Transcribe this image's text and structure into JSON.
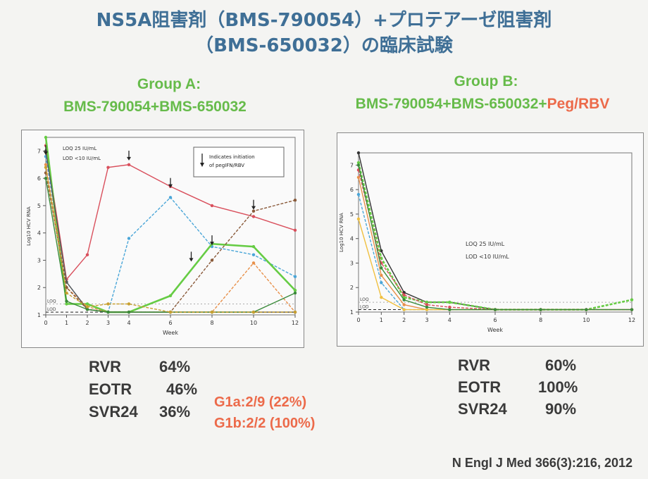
{
  "slide": {
    "title_line1": "NS5A阻害剤（BMS-790054）+プロテアーゼ阻害剤",
    "title_line2": "（BMS-650032）の臨床試験",
    "citation": "N Engl J Med 366(3):216, 2012"
  },
  "groupA": {
    "header1": "Group A:",
    "header2": "BMS-790054+BMS-650032",
    "stats": [
      {
        "label": "RVR",
        "value": "64%"
      },
      {
        "label": "EOTR",
        "value": "46%"
      },
      {
        "label": "SVR24",
        "value": "36%"
      }
    ],
    "genotype": [
      "G1a:2/9 (22%)",
      "G1b:2/2 (100%)"
    ]
  },
  "groupB": {
    "header1": "Group B:",
    "header2_prefix": "BMS-790054+BMS-650032+",
    "header2_peg": "Peg/RBV",
    "stats": [
      {
        "label": "RVR",
        "value": "60%"
      },
      {
        "label": "EOTR",
        "value": "100%"
      },
      {
        "label": "SVR24",
        "value": "90%"
      }
    ]
  },
  "chart_data": [
    {
      "type": "line",
      "xlabel": "Week",
      "ylabel": "Log10 HCV RNA",
      "xlim": [
        0,
        12
      ],
      "ylim": [
        1,
        7.5
      ],
      "xticks": [
        0,
        1,
        2,
        3,
        4,
        6,
        8,
        10,
        12
      ],
      "yticks": [
        1,
        2,
        3,
        4,
        5,
        6,
        7
      ],
      "lod_label": "LOD",
      "loq_label": "LOQ",
      "annotation_left": [
        "LOQ 25 IU/mL",
        "LOD <10 IU/mL"
      ],
      "legend_text": [
        "Indicates initiation",
        "of pegIFN/RBV"
      ],
      "arrows_at": [
        [
          0,
          6.8
        ],
        [
          4,
          6.6
        ],
        [
          6,
          5.6
        ],
        [
          7,
          2.9
        ],
        [
          8,
          3.5
        ],
        [
          10,
          4.8
        ]
      ],
      "series": [
        {
          "color": "#d94f5c",
          "x": [
            0,
            1,
            2,
            3,
            4,
            6,
            8,
            10,
            12
          ],
          "y": [
            7.2,
            2.3,
            3.2,
            6.4,
            6.5,
            5.7,
            5.0,
            4.6,
            4.1
          ]
        },
        {
          "color": "#4aa6d8",
          "x": [
            0,
            1,
            2,
            3,
            4,
            6,
            8,
            10,
            12
          ],
          "y": [
            6.8,
            2.2,
            1.2,
            1.1,
            3.8,
            5.3,
            3.5,
            3.2,
            2.4
          ]
        },
        {
          "color": "#66cc44",
          "x": [
            0,
            1,
            2,
            3,
            4,
            6,
            8,
            10,
            12
          ],
          "y": [
            7.5,
            1.4,
            1.4,
            1.1,
            1.1,
            1.7,
            3.6,
            3.5,
            1.9
          ]
        },
        {
          "color": "#e8904a",
          "x": [
            0,
            1,
            2,
            3,
            4,
            6,
            8,
            10,
            12
          ],
          "y": [
            6.5,
            2.0,
            1.3,
            1.1,
            1.1,
            1.1,
            1.1,
            2.9,
            1.1
          ]
        },
        {
          "color": "#555555",
          "x": [
            0,
            1,
            2,
            3,
            4,
            6,
            8,
            10,
            12
          ],
          "y": [
            7.0,
            2.2,
            1.2,
            1.1,
            1.1,
            1.1,
            1.1,
            1.1,
            1.1
          ]
        },
        {
          "color": "#8a5a3a",
          "x": [
            0,
            1,
            2,
            3,
            4,
            6,
            8,
            10,
            12
          ],
          "y": [
            6.2,
            2.0,
            1.2,
            1.1,
            1.1,
            1.1,
            3.0,
            4.8,
            5.2
          ]
        },
        {
          "color": "#3a8a3a",
          "x": [
            0,
            1,
            2,
            3,
            4,
            6,
            8,
            10,
            12
          ],
          "y": [
            6.0,
            1.5,
            1.2,
            1.1,
            1.1,
            1.1,
            1.1,
            1.1,
            1.8
          ]
        },
        {
          "color": "#c8a030",
          "x": [
            0,
            1,
            2,
            3,
            4,
            6,
            8,
            10,
            12
          ],
          "y": [
            6.4,
            1.8,
            1.3,
            1.4,
            1.4,
            1.1,
            1.1,
            1.1,
            1.1
          ]
        }
      ]
    },
    {
      "type": "line",
      "xlabel": "Week",
      "ylabel": "Log10 HCV RNA",
      "xlim": [
        0,
        12
      ],
      "ylim": [
        1,
        7.5
      ],
      "xticks": [
        0,
        1,
        2,
        3,
        4,
        6,
        8,
        10,
        12
      ],
      "yticks": [
        1,
        2,
        3,
        4,
        5,
        6,
        7
      ],
      "lod_label": "LOD",
      "loq_label": "LOQ",
      "annotation_center": [
        "LOQ 25 IU/mL",
        "LOD <10 IU/mL"
      ],
      "series": [
        {
          "color": "#333333",
          "x": [
            0,
            1,
            2,
            3,
            4,
            6,
            8,
            10,
            12
          ],
          "y": [
            7.5,
            3.5,
            1.8,
            1.4,
            1.4,
            1.1,
            1.1,
            1.1,
            1.1
          ]
        },
        {
          "color": "#66cc44",
          "x": [
            0,
            1,
            2,
            3,
            4,
            6,
            8,
            10,
            12
          ],
          "y": [
            7.1,
            3.2,
            1.6,
            1.4,
            1.4,
            1.1,
            1.1,
            1.1,
            1.5
          ]
        },
        {
          "color": "#e8904a",
          "x": [
            0,
            1,
            2,
            3,
            4,
            6,
            8,
            10,
            12
          ],
          "y": [
            6.5,
            2.5,
            1.3,
            1.1,
            1.1,
            1.1,
            1.1,
            1.1,
            1.1
          ]
        },
        {
          "color": "#4aa6d8",
          "x": [
            0,
            1,
            2,
            3,
            4,
            6,
            8,
            10,
            12
          ],
          "y": [
            5.8,
            2.2,
            1.1,
            1.1,
            1.1,
            1.1,
            1.1,
            1.1,
            1.1
          ]
        },
        {
          "color": "#f0c040",
          "x": [
            0,
            1,
            2,
            3,
            4,
            6,
            8,
            10,
            12
          ],
          "y": [
            4.8,
            1.6,
            1.1,
            1.1,
            1.1,
            1.1,
            1.1,
            1.1,
            1.1
          ]
        },
        {
          "color": "#d94f5c",
          "x": [
            0,
            1,
            2,
            3,
            4,
            6,
            8,
            10,
            12
          ],
          "y": [
            6.8,
            3.0,
            1.7,
            1.3,
            1.2,
            1.1,
            1.1,
            1.1,
            1.1
          ]
        },
        {
          "color": "#3a8a3a",
          "x": [
            0,
            1,
            2,
            3,
            4,
            6,
            8,
            10,
            12
          ],
          "y": [
            7.0,
            2.8,
            1.5,
            1.2,
            1.1,
            1.1,
            1.1,
            1.1,
            1.1
          ]
        }
      ]
    }
  ]
}
